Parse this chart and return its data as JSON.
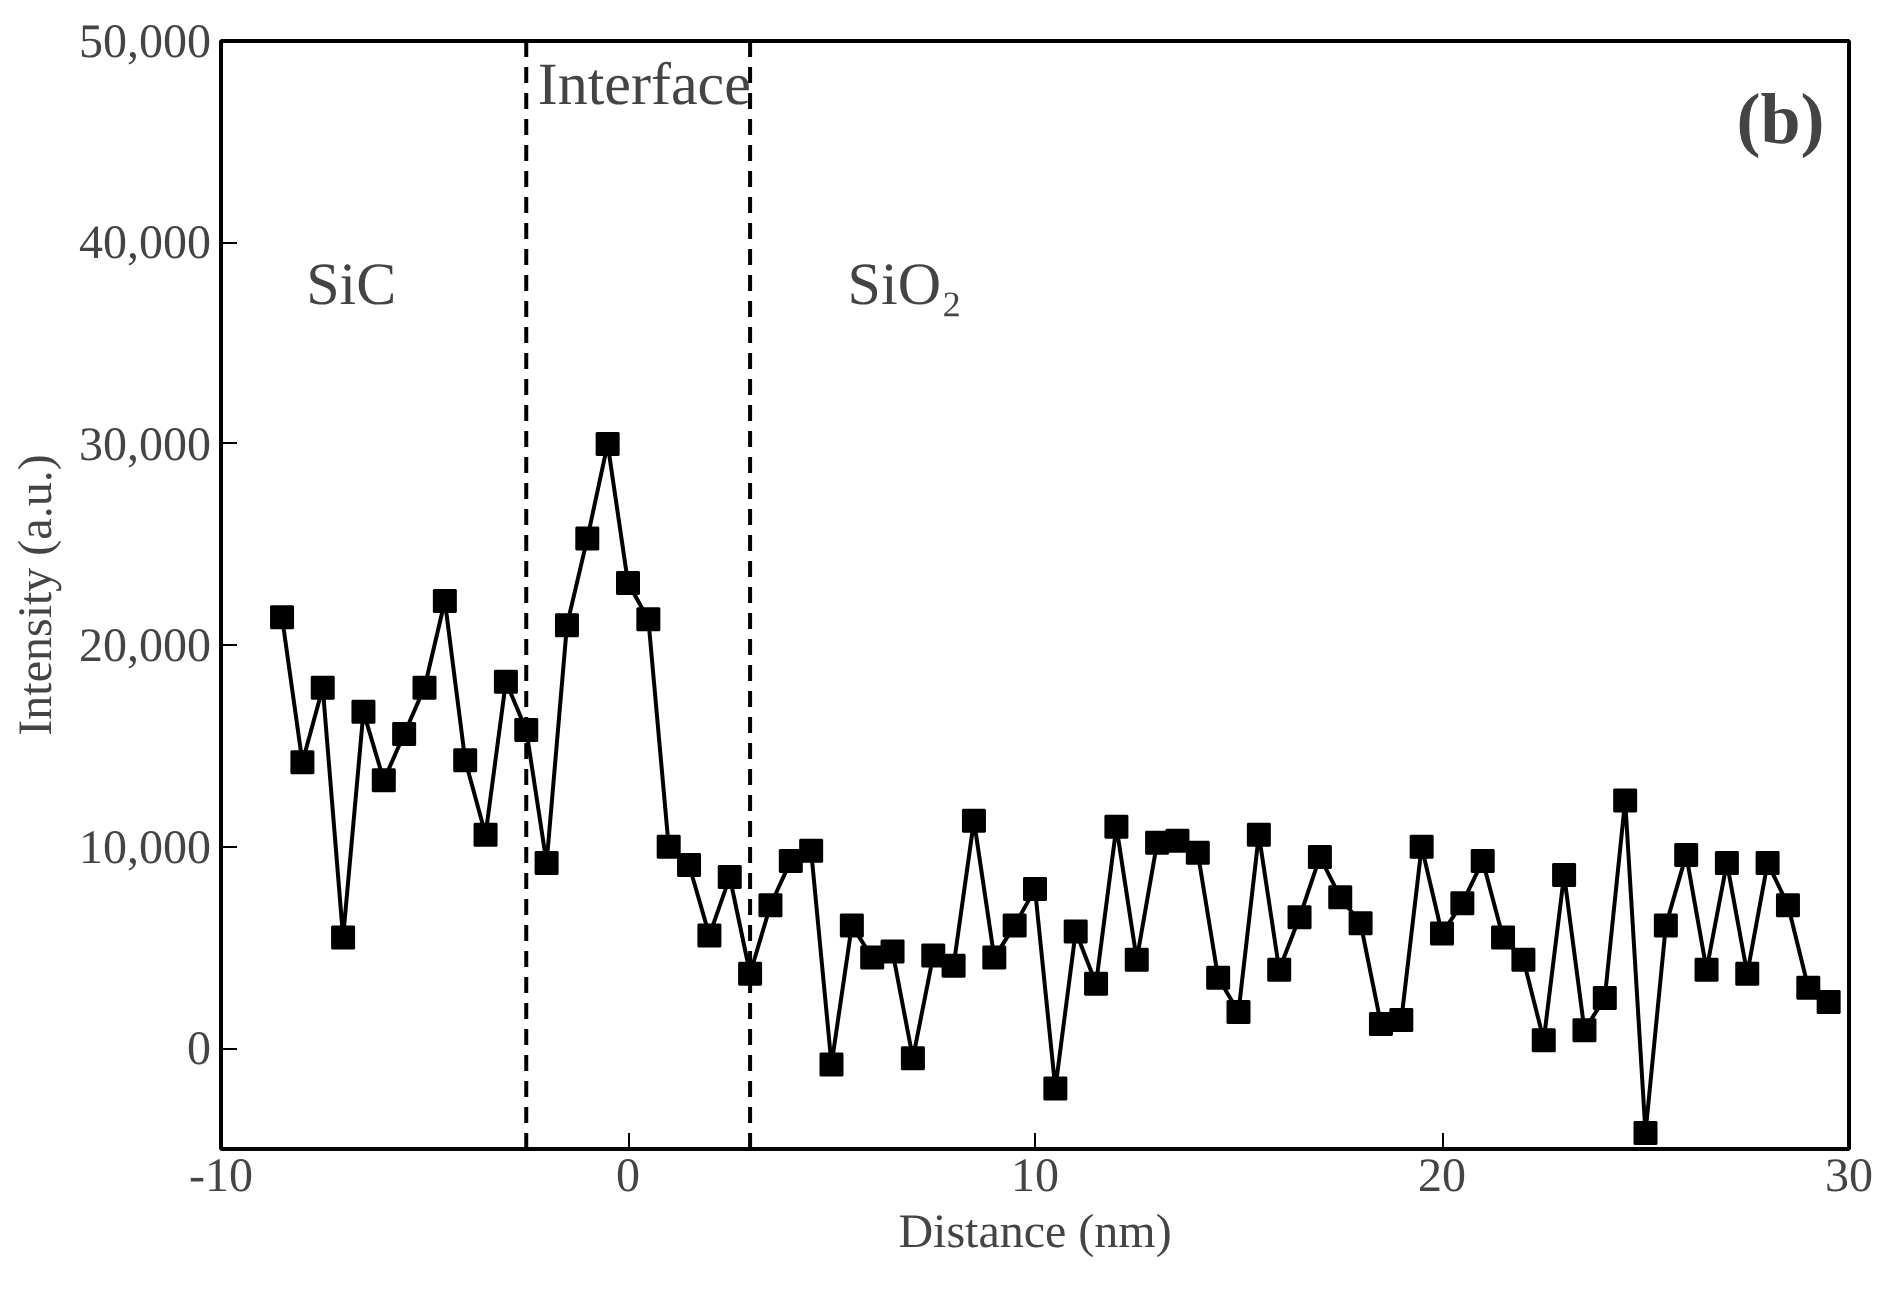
{
  "chart_data": {
    "type": "line",
    "xlabel": "Distance (nm)",
    "ylabel": "Intensity (a.u.)",
    "x": [
      -8.5,
      -8.0,
      -7.5,
      -7.0,
      -6.5,
      -6.0,
      -5.5,
      -5.0,
      -4.5,
      -4.0,
      -3.5,
      -3.0,
      -2.5,
      -2.0,
      -1.5,
      -1.0,
      -0.5,
      0.0,
      0.5,
      1.0,
      1.5,
      2.0,
      2.5,
      3.0,
      3.5,
      4.0,
      4.5,
      5.0,
      5.5,
      6.0,
      6.5,
      7.0,
      7.5,
      8.0,
      8.5,
      9.0,
      9.5,
      10.0,
      10.5,
      11.0,
      11.5,
      12.0,
      12.5,
      13.0,
      13.5,
      14.0,
      14.5,
      15.0,
      15.5,
      16.0,
      16.5,
      17.0,
      17.5,
      18.0,
      18.5,
      19.0,
      19.5,
      20.0,
      20.5,
      21.0,
      21.5,
      22.0,
      22.5,
      23.0,
      23.5,
      24.0,
      24.5,
      25.0,
      25.5,
      26.0,
      26.5,
      27.0,
      27.5,
      28.0,
      28.5,
      29.0,
      29.5
    ],
    "series": [
      {
        "color": "#000000",
        "values": [
          21400,
          14200,
          17900,
          5500,
          16700,
          13300,
          15600,
          17900,
          22200,
          14300,
          10600,
          18200,
          15800,
          9200,
          21000,
          25300,
          30000,
          23100,
          21300,
          10000,
          9100,
          5600,
          8500,
          3700,
          7100,
          9300,
          9800,
          -800,
          6100,
          4500,
          4800,
          -500,
          4600,
          4100,
          11300,
          4500,
          6100,
          7900,
          -2000,
          5800,
          3200,
          11000,
          4400,
          10200,
          10300,
          9700,
          3500,
          1800,
          10600,
          3900,
          6500,
          9500,
          7500,
          6200,
          1200,
          1400,
          10000,
          5700,
          7200,
          9300,
          5500,
          4400,
          400,
          8600,
          900,
          2500,
          12300,
          -4200,
          6100,
          9600,
          3900,
          9200,
          3700,
          9200,
          7100,
          3000,
          2300
        ]
      }
    ],
    "xlim": [
      -10,
      30
    ],
    "xticks": [
      -10,
      0,
      10,
      20,
      30
    ],
    "ylim": [
      -5000,
      50000
    ],
    "yticks": [
      {
        "value": 0,
        "label": "0"
      },
      {
        "value": 10000,
        "label": "10,000"
      },
      {
        "value": 20000,
        "label": "20,000"
      },
      {
        "value": 30000,
        "label": "30,000"
      },
      {
        "value": 40000,
        "label": "40,000"
      },
      {
        "value": 50000,
        "label": "50,000"
      }
    ],
    "ref_lines": [
      {
        "axis": "x",
        "value": -2.5,
        "color": "#000000",
        "line_style": "dashed"
      },
      {
        "axis": "x",
        "value": 3.0,
        "color": "#000000",
        "line_style": "dashed"
      }
    ],
    "annotations": [
      "SiC",
      "Interface",
      "SiO₂",
      "(b)"
    ],
    "grid": false,
    "marker": "square",
    "line_style": "solid"
  }
}
